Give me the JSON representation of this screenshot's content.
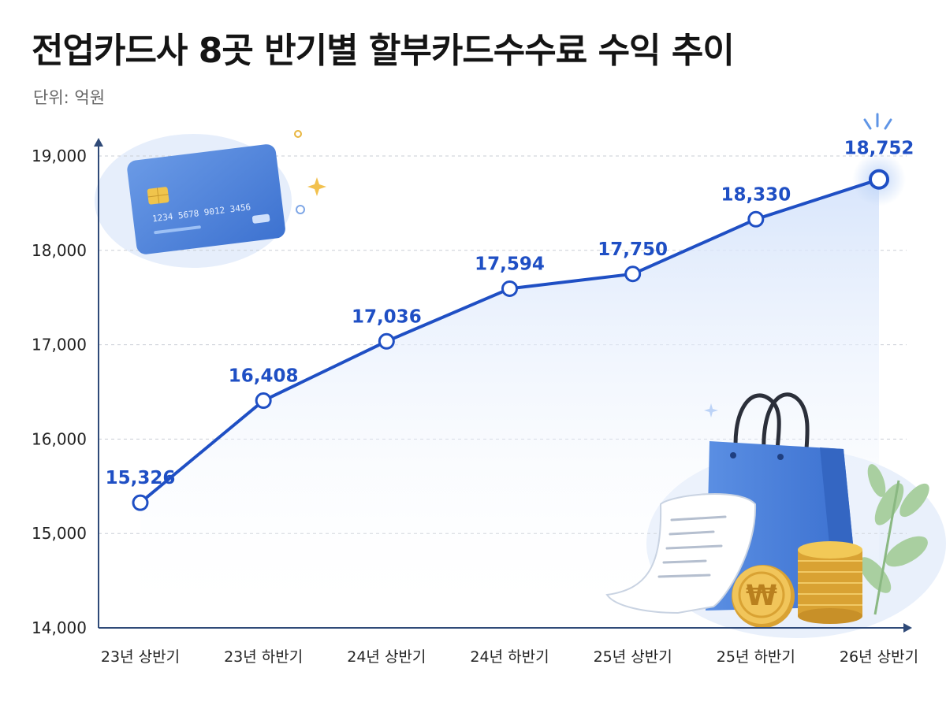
{
  "title": "전업카드사 8곳 반기별 할부카드수수료 수익 추이",
  "unit_label": "단위: 억원",
  "card_number": "1234  5678  9012  3456",
  "currency_symbol": "₩",
  "colors": {
    "line": "#1f4fc4",
    "label": "#1f4fc4",
    "area_top": "#dbe7fb",
    "axis": "#2f4a78",
    "grid": "#c9ced6",
    "card": "#4f86dd",
    "bag": "#3f78d6",
    "coin": "#e8b53f"
  },
  "icons": [
    "credit-card-icon",
    "shopping-bag-icon",
    "receipt-icon",
    "won-coin-icon",
    "coin-stack-icon",
    "leaf-icon",
    "sparkle-icon"
  ],
  "chart_data": {
    "type": "line",
    "categories": [
      "23년 상반기",
      "23년 하반기",
      "24년 상반기",
      "24년 하반기",
      "25년 상반기",
      "25년 하반기",
      "26년 상반기"
    ],
    "values": [
      15326,
      16408,
      17036,
      17594,
      17750,
      18330,
      18752
    ],
    "value_labels": [
      "15,326",
      "16,408",
      "17,036",
      "17,594",
      "17,750",
      "18,330",
      "18,752"
    ],
    "yticks": [
      14000,
      15000,
      16000,
      17000,
      18000,
      19000
    ],
    "ytick_labels": [
      "14,000",
      "15,000",
      "16,000",
      "17,000",
      "18,000",
      "19,000"
    ],
    "ylim": [
      14000,
      19000
    ],
    "grid": true,
    "legend": "none"
  }
}
